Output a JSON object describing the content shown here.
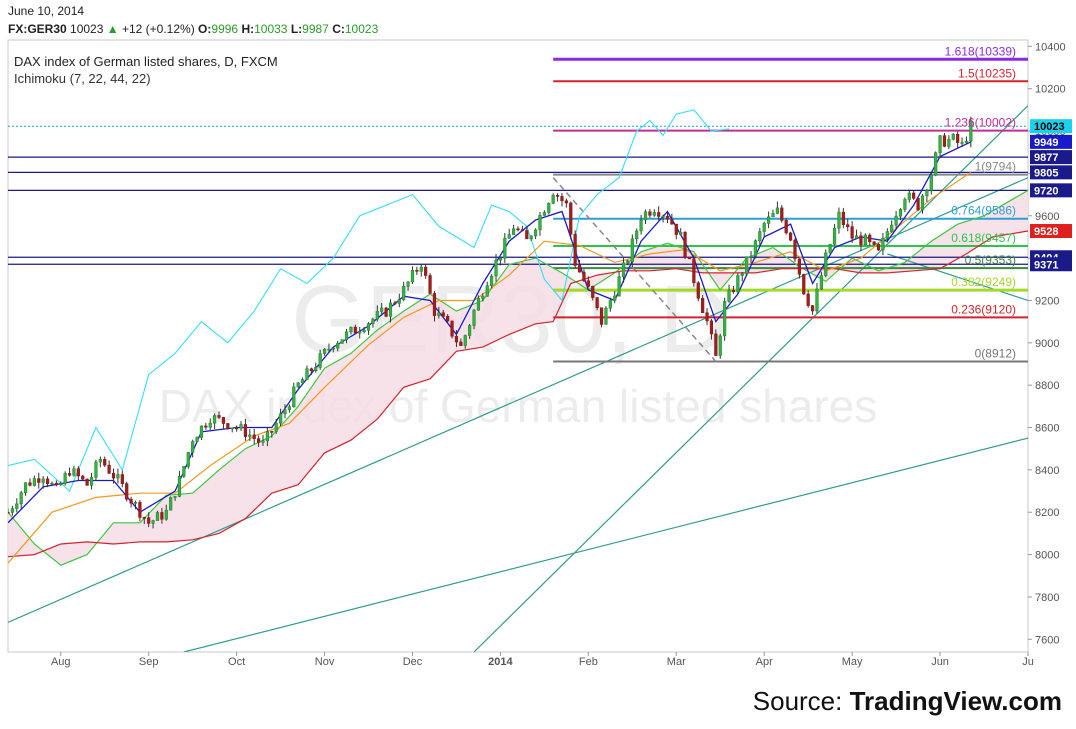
{
  "header": {
    "date": "June 10, 2014",
    "symbol": "FX:GER30",
    "last": "10023",
    "change_arrow": "▲",
    "change": "+12 (+0.12%)",
    "open_label": "O:",
    "open": "9996",
    "high_label": "H:",
    "high": "10033",
    "low_label": "L:",
    "low": "9987",
    "close_label": "C:",
    "close": "10023"
  },
  "legend": {
    "title": "DAX index of German listed shares, D, FXCM",
    "indicator": "Ichimoku (7, 22, 44, 22)"
  },
  "watermark": {
    "symbol": "GER30, D",
    "name": "DAX index of German listed shares"
  },
  "source": {
    "prefix": "Source: ",
    "brand": "TradingView.com"
  },
  "chart_data": {
    "type": "candlestick",
    "title": "DAX index of German listed shares, D, FXCM",
    "ylim": [
      7540,
      10430
    ],
    "y_ticks": [
      7600,
      7800,
      8000,
      8200,
      8400,
      8600,
      8800,
      9000,
      9200,
      9400,
      9600,
      9800,
      10000,
      10200,
      10400
    ],
    "x_labels": [
      {
        "label": "Aug",
        "x": 0.6
      },
      {
        "label": "Sep",
        "x": 1.6
      },
      {
        "label": "Oct",
        "x": 2.6
      },
      {
        "label": "Nov",
        "x": 3.6
      },
      {
        "label": "Dec",
        "x": 4.6
      },
      {
        "label": "2014",
        "x": 5.6,
        "bold": true
      },
      {
        "label": "Feb",
        "x": 6.6
      },
      {
        "label": "Mar",
        "x": 7.6
      },
      {
        "label": "Apr",
        "x": 8.6
      },
      {
        "label": "May",
        "x": 9.6
      },
      {
        "label": "Jun",
        "x": 10.6
      },
      {
        "label": "Ju",
        "x": 11.6
      }
    ],
    "xlim": [
      0,
      11.6
    ],
    "close_path": [
      [
        0,
        8200
      ],
      [
        0.2,
        8330
      ],
      [
        0.4,
        8380
      ],
      [
        0.55,
        8300
      ],
      [
        0.7,
        8400
      ],
      [
        0.9,
        8330
      ],
      [
        1.05,
        8450
      ],
      [
        1.25,
        8350
      ],
      [
        1.4,
        8260
      ],
      [
        1.6,
        8150
      ],
      [
        1.8,
        8200
      ],
      [
        1.95,
        8350
      ],
      [
        2.1,
        8550
      ],
      [
        2.3,
        8650
      ],
      [
        2.5,
        8620
      ],
      [
        2.7,
        8580
      ],
      [
        2.9,
        8520
      ],
      [
        3.1,
        8650
      ],
      [
        3.3,
        8800
      ],
      [
        3.5,
        8900
      ],
      [
        3.7,
        9000
      ],
      [
        3.9,
        9050
      ],
      [
        4.1,
        9100
      ],
      [
        4.3,
        9150
      ],
      [
        4.5,
        9250
      ],
      [
        4.7,
        9380
      ],
      [
        4.85,
        9150
      ],
      [
        5.0,
        9080
      ],
      [
        5.15,
        8980
      ],
      [
        5.3,
        9150
      ],
      [
        5.45,
        9300
      ],
      [
        5.6,
        9420
      ],
      [
        5.75,
        9550
      ],
      [
        5.9,
        9480
      ],
      [
        6.05,
        9600
      ],
      [
        6.2,
        9720
      ],
      [
        6.35,
        9650
      ],
      [
        6.45,
        9380
      ],
      [
        6.6,
        9250
      ],
      [
        6.75,
        9100
      ],
      [
        6.9,
        9250
      ],
      [
        7.05,
        9400
      ],
      [
        7.2,
        9600
      ],
      [
        7.35,
        9640
      ],
      [
        7.5,
        9600
      ],
      [
        7.65,
        9500
      ],
      [
        7.8,
        9300
      ],
      [
        7.95,
        9100
      ],
      [
        8.05,
        8930
      ],
      [
        8.15,
        9180
      ],
      [
        8.3,
        9300
      ],
      [
        8.45,
        9420
      ],
      [
        8.6,
        9560
      ],
      [
        8.75,
        9620
      ],
      [
        8.9,
        9500
      ],
      [
        9.05,
        9250
      ],
      [
        9.15,
        9150
      ],
      [
        9.3,
        9400
      ],
      [
        9.45,
        9600
      ],
      [
        9.6,
        9500
      ],
      [
        9.75,
        9480
      ],
      [
        9.9,
        9420
      ],
      [
        10.05,
        9580
      ],
      [
        10.2,
        9700
      ],
      [
        10.35,
        9650
      ],
      [
        10.5,
        9800
      ],
      [
        10.6,
        9950
      ],
      [
        10.75,
        9960
      ],
      [
        10.85,
        9930
      ],
      [
        10.95,
        10023
      ]
    ],
    "ichimoku": {
      "tenkan_color": "#1a1acd",
      "kijun_color": "#f39a1e",
      "chikou_color": "#33e0f5",
      "senkou_a_color": "#3bc83b",
      "senkou_b_color": "#d3232f",
      "cloud_color": "#f7dde6",
      "tenkan": [
        [
          0,
          8150
        ],
        [
          0.4,
          8320
        ],
        [
          0.8,
          8350
        ],
        [
          1.2,
          8350
        ],
        [
          1.5,
          8200
        ],
        [
          1.9,
          8300
        ],
        [
          2.2,
          8580
        ],
        [
          2.6,
          8600
        ],
        [
          3.0,
          8600
        ],
        [
          3.3,
          8780
        ],
        [
          3.7,
          8980
        ],
        [
          4.1,
          9080
        ],
        [
          4.5,
          9220
        ],
        [
          4.8,
          9200
        ],
        [
          5.1,
          9040
        ],
        [
          5.4,
          9280
        ],
        [
          5.7,
          9480
        ],
        [
          6.0,
          9580
        ],
        [
          6.3,
          9620
        ],
        [
          6.6,
          9250
        ],
        [
          6.9,
          9200
        ],
        [
          7.2,
          9480
        ],
        [
          7.5,
          9620
        ],
        [
          7.8,
          9400
        ],
        [
          8.05,
          9100
        ],
        [
          8.3,
          9230
        ],
        [
          8.6,
          9500
        ],
        [
          8.9,
          9560
        ],
        [
          9.15,
          9280
        ],
        [
          9.4,
          9450
        ],
        [
          9.7,
          9500
        ],
        [
          10.0,
          9480
        ],
        [
          10.3,
          9650
        ],
        [
          10.6,
          9880
        ],
        [
          10.95,
          9949
        ]
      ],
      "kijun": [
        [
          0,
          7960
        ],
        [
          0.5,
          8200
        ],
        [
          1.0,
          8270
        ],
        [
          1.5,
          8290
        ],
        [
          1.9,
          8290
        ],
        [
          2.3,
          8420
        ],
        [
          2.8,
          8560
        ],
        [
          3.2,
          8620
        ],
        [
          3.6,
          8790
        ],
        [
          4.1,
          8990
        ],
        [
          4.5,
          9120
        ],
        [
          4.9,
          9200
        ],
        [
          5.3,
          9200
        ],
        [
          5.7,
          9320
        ],
        [
          6.1,
          9480
        ],
        [
          6.5,
          9460
        ],
        [
          6.9,
          9380
        ],
        [
          7.3,
          9420
        ],
        [
          7.7,
          9440
        ],
        [
          8.1,
          9340
        ],
        [
          8.5,
          9380
        ],
        [
          8.9,
          9430
        ],
        [
          9.3,
          9340
        ],
        [
          9.7,
          9400
        ],
        [
          10.1,
          9540
        ],
        [
          10.5,
          9680
        ],
        [
          10.95,
          9805
        ]
      ],
      "chikou": [
        [
          0,
          8420
        ],
        [
          0.3,
          8450
        ],
        [
          0.7,
          8300
        ],
        [
          1.0,
          8600
        ],
        [
          1.3,
          8400
        ],
        [
          1.6,
          8850
        ],
        [
          1.9,
          8950
        ],
        [
          2.2,
          9100
        ],
        [
          2.5,
          9000
        ],
        [
          2.8,
          9150
        ],
        [
          3.1,
          9350
        ],
        [
          3.4,
          9280
        ],
        [
          3.7,
          9400
        ],
        [
          4.0,
          9600
        ],
        [
          4.3,
          9650
        ],
        [
          4.6,
          9700
        ],
        [
          4.9,
          9550
        ],
        [
          5.1,
          9500
        ],
        [
          5.3,
          9450
        ],
        [
          5.5,
          9650
        ],
        [
          5.7,
          9620
        ],
        [
          5.9,
          9550
        ],
        [
          6.1,
          9300
        ],
        [
          6.3,
          9200
        ],
        [
          6.5,
          9600
        ],
        [
          6.7,
          9700
        ],
        [
          6.95,
          9780
        ],
        [
          7.15,
          10000
        ],
        [
          7.3,
          10050
        ],
        [
          7.45,
          9980
        ],
        [
          7.6,
          10080
        ],
        [
          7.8,
          10100
        ],
        [
          8.0,
          10000
        ],
        [
          8.2,
          10010
        ]
      ],
      "senkou_a": [
        [
          0,
          8200
        ],
        [
          0.3,
          8050
        ],
        [
          0.6,
          7950
        ],
        [
          0.9,
          8000
        ],
        [
          1.2,
          8150
        ],
        [
          1.5,
          8150
        ],
        [
          1.8,
          8280
        ],
        [
          2.1,
          8290
        ],
        [
          2.4,
          8400
        ],
        [
          2.7,
          8500
        ],
        [
          3.0,
          8560
        ],
        [
          3.3,
          8700
        ],
        [
          3.6,
          8880
        ],
        [
          3.9,
          8950
        ],
        [
          4.2,
          9060
        ],
        [
          4.5,
          9150
        ],
        [
          4.8,
          9230
        ],
        [
          5.1,
          9150
        ],
        [
          5.4,
          9200
        ],
        [
          5.7,
          9370
        ],
        [
          6.0,
          9400
        ],
        [
          6.3,
          9330
        ],
        [
          6.6,
          9250
        ],
        [
          6.9,
          9330
        ],
        [
          7.2,
          9430
        ],
        [
          7.5,
          9470
        ],
        [
          7.8,
          9430
        ],
        [
          8.1,
          9250
        ],
        [
          8.4,
          9400
        ],
        [
          8.7,
          9450
        ],
        [
          9.0,
          9360
        ],
        [
          9.3,
          9290
        ],
        [
          9.6,
          9400
        ],
        [
          9.9,
          9340
        ],
        [
          10.2,
          9380
        ],
        [
          10.5,
          9480
        ],
        [
          10.8,
          9560
        ],
        [
          11.1,
          9600
        ],
        [
          11.6,
          9720
        ]
      ],
      "senkou_b": [
        [
          0,
          7990
        ],
        [
          0.3,
          8000
        ],
        [
          0.6,
          8050
        ],
        [
          0.9,
          8060
        ],
        [
          1.2,
          8050
        ],
        [
          1.5,
          8060
        ],
        [
          1.8,
          8060
        ],
        [
          2.1,
          8070
        ],
        [
          2.4,
          8100
        ],
        [
          2.7,
          8170
        ],
        [
          3.0,
          8290
        ],
        [
          3.3,
          8330
        ],
        [
          3.6,
          8480
        ],
        [
          3.9,
          8540
        ],
        [
          4.2,
          8640
        ],
        [
          4.5,
          8790
        ],
        [
          4.8,
          8830
        ],
        [
          5.1,
          8960
        ],
        [
          5.4,
          8980
        ],
        [
          5.7,
          9040
        ],
        [
          6.0,
          9090
        ],
        [
          6.2,
          9100
        ],
        [
          6.4,
          9280
        ],
        [
          6.7,
          9320
        ],
        [
          7.0,
          9340
        ],
        [
          7.3,
          9340
        ],
        [
          7.6,
          9350
        ],
        [
          7.9,
          9330
        ],
        [
          8.2,
          9330
        ],
        [
          8.5,
          9330
        ],
        [
          8.8,
          9350
        ],
        [
          9.1,
          9350
        ],
        [
          9.4,
          9350
        ],
        [
          9.7,
          9330
        ],
        [
          10.0,
          9330
        ],
        [
          10.3,
          9340
        ],
        [
          10.6,
          9350
        ],
        [
          10.9,
          9420
        ],
        [
          11.2,
          9500
        ],
        [
          11.6,
          9528
        ]
      ]
    },
    "fib_levels": [
      {
        "label": "1.618(10339)",
        "value": 10339,
        "color": "#8a2be2",
        "width": 3
      },
      {
        "label": "1.5(10235)",
        "value": 10235,
        "color": "#d3232f",
        "width": 2
      },
      {
        "label": "1.236(10002)",
        "value": 10002,
        "color": "#c22c9a",
        "width": 2
      },
      {
        "label": "1(9794)",
        "value": 9794,
        "color": "#888888",
        "width": 2
      },
      {
        "label": "0.764(9586)",
        "value": 9586,
        "color": "#2a9fd6",
        "width": 2
      },
      {
        "label": "0.618(9457)",
        "value": 9457,
        "color": "#2ec44a",
        "width": 2
      },
      {
        "label": "0.5(9353)",
        "value": 9353,
        "color": "#3a8a3a",
        "width": 2
      },
      {
        "label": "0.382(9249)",
        "value": 9249,
        "color": "#a4d92a",
        "width": 3
      },
      {
        "label": "0.236(9120)",
        "value": 9120,
        "color": "#d3232f",
        "width": 2
      },
      {
        "label": "0(8912)",
        "value": 8912,
        "color": "#777777",
        "width": 2
      }
    ],
    "fib_x_range": [
      6.2,
      11.6
    ],
    "horizontal_lines": [
      9877,
      9805,
      9720,
      9404,
      9371
    ],
    "trendlines": [
      {
        "from": [
          0,
          7680
        ],
        "to": [
          11.6,
          9780
        ],
        "color": "#2e9e8e"
      },
      {
        "from": [
          2.0,
          7540
        ],
        "to": [
          11.6,
          8550
        ],
        "color": "#2e9e8e"
      },
      {
        "from": [
          5.3,
          7540
        ],
        "to": [
          11.6,
          10120
        ],
        "color": "#2e9e8e"
      },
      {
        "from": [
          10.0,
          9420
        ],
        "to": [
          11.6,
          9200
        ],
        "color": "#2e9e8e"
      }
    ],
    "dashed_line": {
      "from": [
        6.2,
        9780
      ],
      "to": [
        8.05,
        8912
      ],
      "color": "#888888"
    },
    "price_tags": [
      {
        "label": "10023",
        "value": 10023,
        "bg": "#17d3ed",
        "fg": "#000000"
      },
      {
        "label": "9949",
        "value": 9949,
        "bg": "#1a1acd",
        "fg": "#ffffff"
      },
      {
        "label": "9877",
        "value": 9877,
        "bg": "#1a1a8a",
        "fg": "#ffffff"
      },
      {
        "label": "9805",
        "value": 9805,
        "bg": "#1a1a8a",
        "fg": "#ffffff"
      },
      {
        "label": "9720",
        "value": 9720,
        "bg": "#1a1a8a",
        "fg": "#ffffff"
      },
      {
        "label": "9528",
        "value": 9528,
        "bg": "#e0201f",
        "fg": "#ffffff"
      },
      {
        "label": "9404",
        "value": 9404,
        "bg": "#1a1a8a",
        "fg": "#ffffff"
      },
      {
        "label": "9371",
        "value": 9371,
        "bg": "#1a1a8a",
        "fg": "#ffffff"
      }
    ],
    "last_price": 10023
  }
}
